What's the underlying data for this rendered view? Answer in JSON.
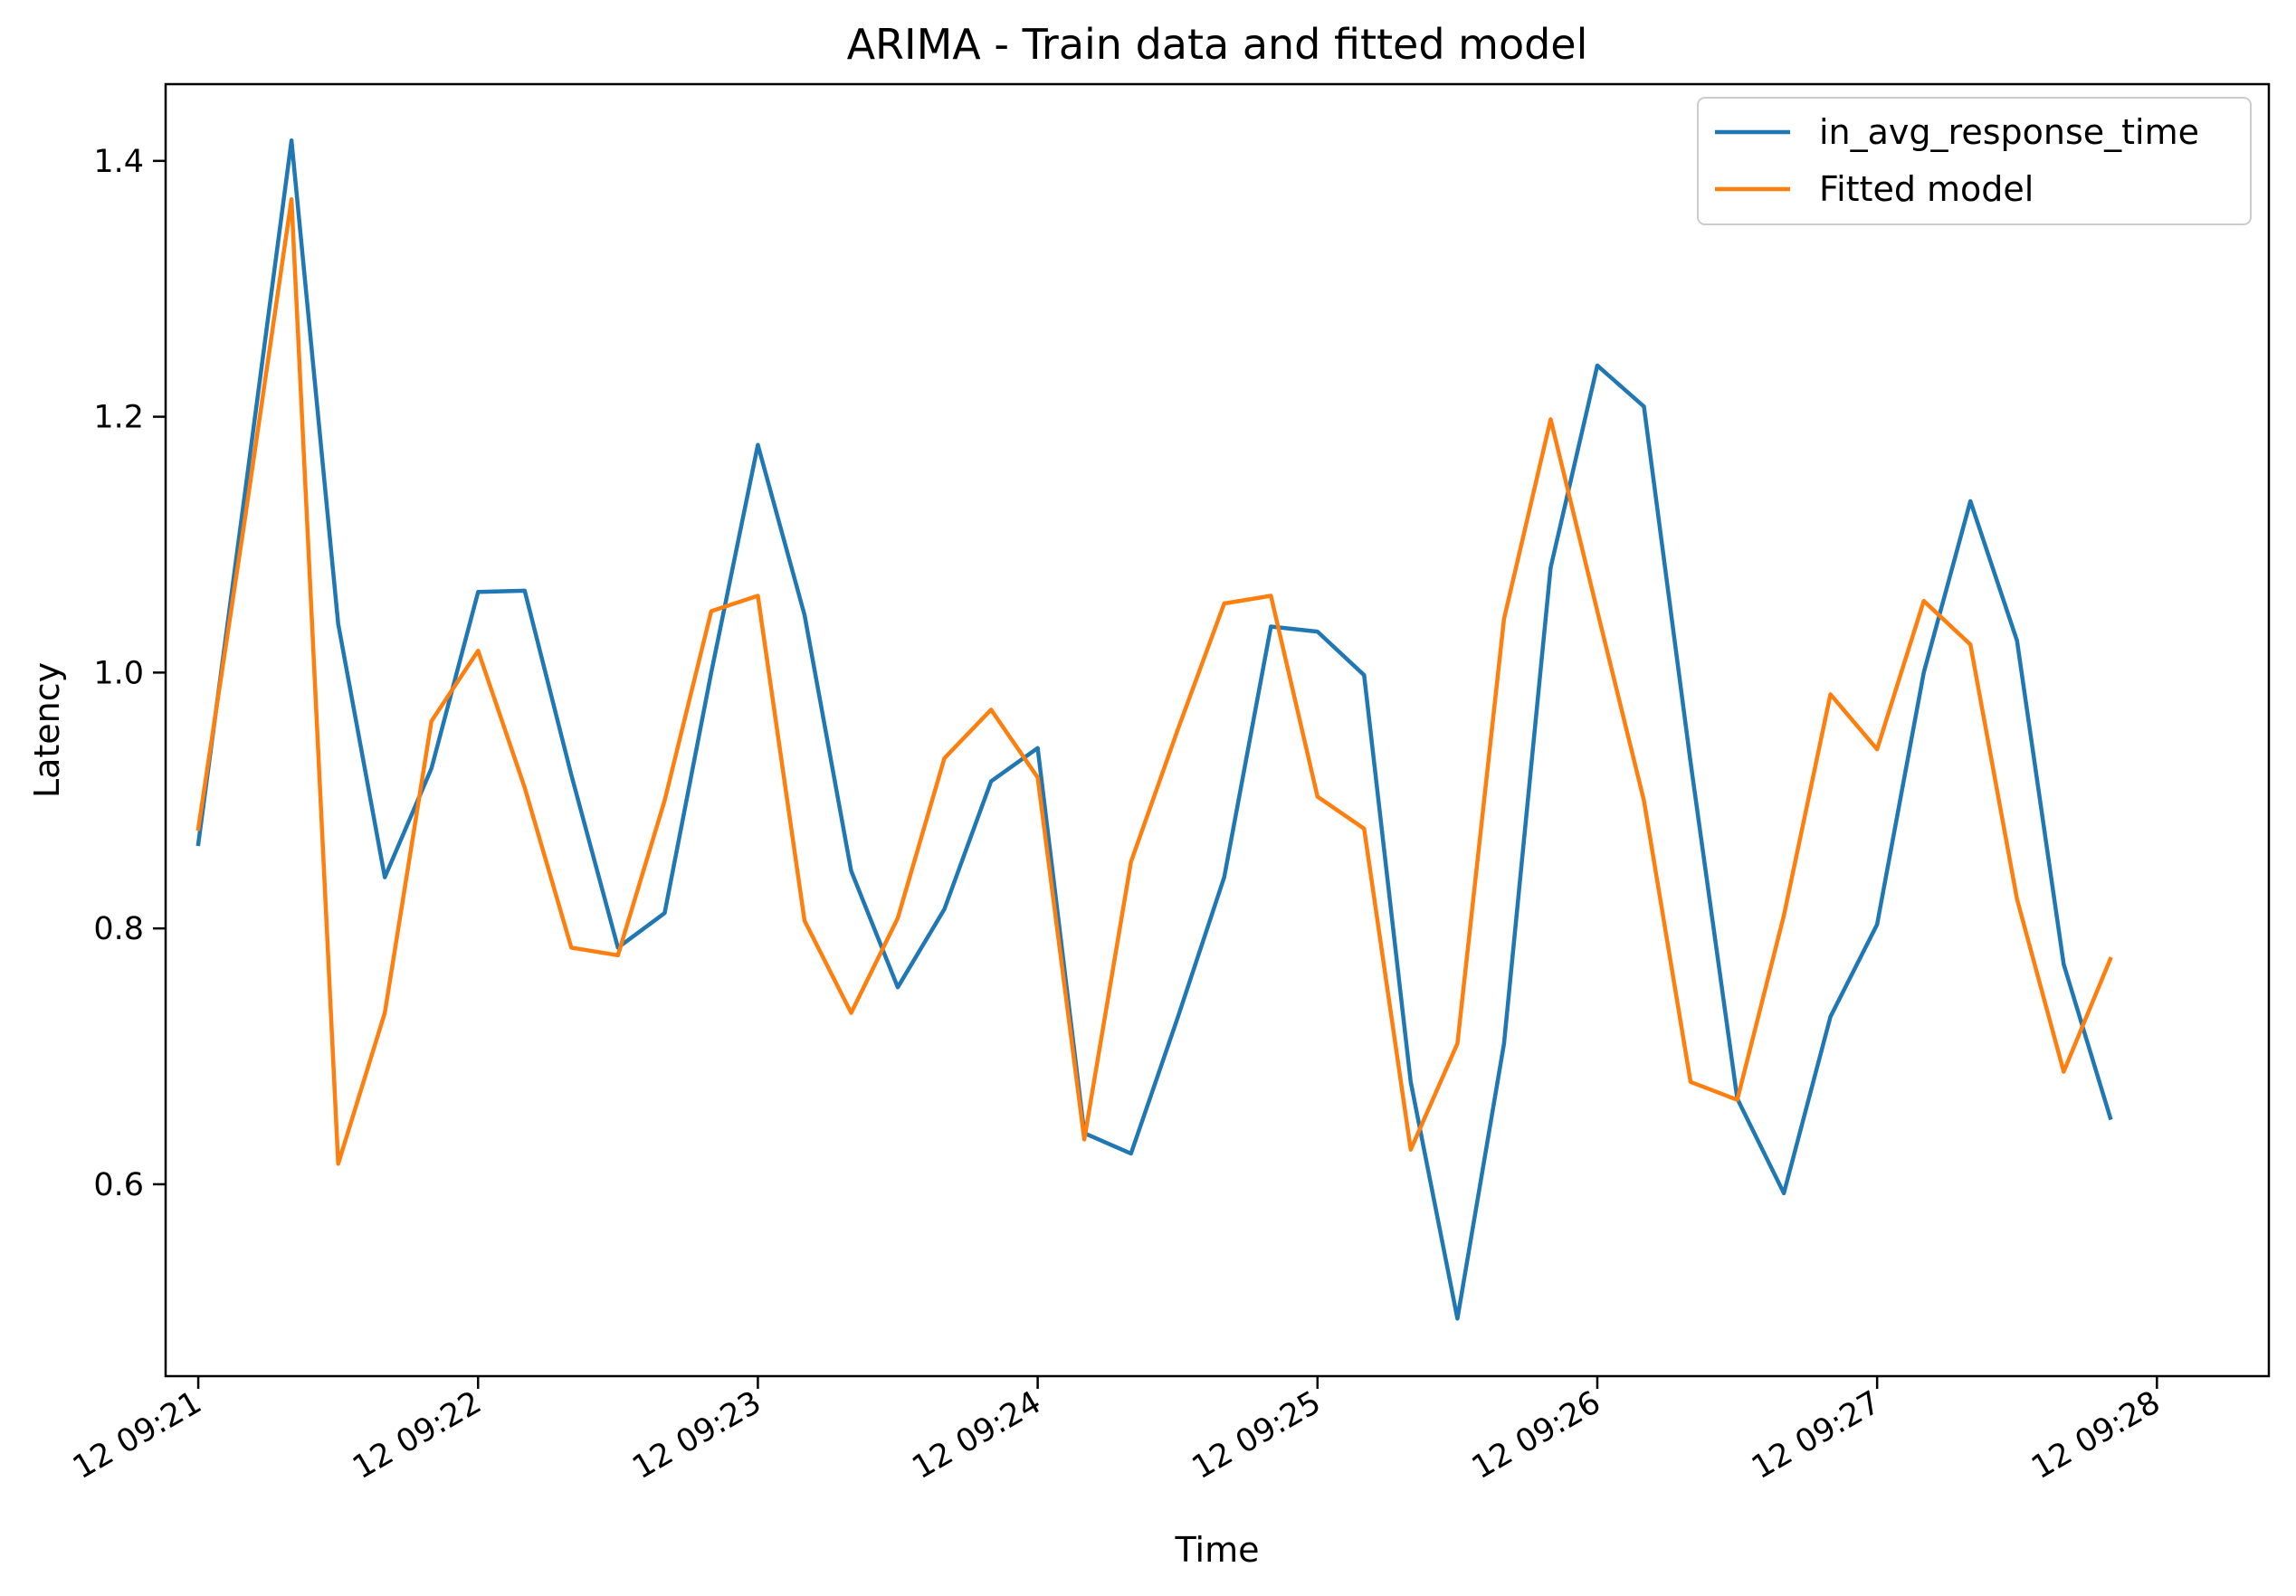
{
  "chart_data": {
    "type": "line",
    "title": "ARIMA - Train data and fitted model",
    "xlabel": "Time",
    "ylabel": "Latency",
    "ylim": [
      0.45,
      1.46
    ],
    "xlim": [
      "12 09:20:53",
      "12 09:28:24"
    ],
    "grid": false,
    "legend_position": "top-right",
    "x_ticks": [
      "12 09:21",
      "12 09:22",
      "12 09:23",
      "12 09:24",
      "12 09:25",
      "12 09:26",
      "12 09:27",
      "12 09:28"
    ],
    "y_ticks": [
      "0.6",
      "0.8",
      "1.0",
      "1.2",
      "1.4"
    ],
    "x": [
      "12 09:21:00",
      "12 09:21:10",
      "12 09:21:20",
      "12 09:21:30",
      "12 09:21:40",
      "12 09:21:50",
      "12 09:22:00",
      "12 09:22:10",
      "12 09:22:20",
      "12 09:22:30",
      "12 09:22:40",
      "12 09:22:50",
      "12 09:23:00",
      "12 09:23:10",
      "12 09:23:20",
      "12 09:23:30",
      "12 09:23:40",
      "12 09:23:50",
      "12 09:24:00",
      "12 09:24:10",
      "12 09:24:20",
      "12 09:24:30",
      "12 09:24:40",
      "12 09:24:50",
      "12 09:25:00",
      "12 09:25:10",
      "12 09:25:20",
      "12 09:25:30",
      "12 09:25:40",
      "12 09:25:50",
      "12 09:26:00",
      "12 09:26:10",
      "12 09:26:20",
      "12 09:26:30",
      "12 09:26:40",
      "12 09:26:50",
      "12 09:27:00",
      "12 09:27:10",
      "12 09:27:20",
      "12 09:27:30",
      "12 09:27:40",
      "12 09:27:50"
    ],
    "series": [
      {
        "name": "in_avg_response_time",
        "color": "#1f77b4",
        "values": [
          0.866,
          1.14,
          1.416,
          1.038,
          0.84,
          0.925,
          1.063,
          1.064,
          0.92,
          0.785,
          0.812,
          1.0,
          1.178,
          1.045,
          0.845,
          0.754,
          0.815,
          0.915,
          0.941,
          0.64,
          0.624,
          0.73,
          0.84,
          1.036,
          1.032,
          0.998,
          0.68,
          0.495,
          0.71,
          1.082,
          1.24,
          1.208,
          0.93,
          0.667,
          0.593,
          0.731,
          0.803,
          1.0,
          1.134,
          1.025,
          0.772,
          0.652
        ]
      },
      {
        "name": "Fitted model",
        "color": "#ff7f0e",
        "values": [
          0.878,
          1.12,
          1.37,
          0.616,
          0.734,
          0.962,
          1.017,
          0.91,
          0.785,
          0.779,
          0.9,
          1.048,
          1.06,
          0.806,
          0.734,
          0.808,
          0.933,
          0.971,
          0.918,
          0.635,
          0.852,
          0.955,
          1.054,
          1.06,
          0.903,
          0.878,
          0.627,
          0.71,
          1.042,
          1.198,
          1.048,
          0.9,
          0.68,
          0.666,
          0.81,
          0.983,
          0.94,
          1.056,
          1.022,
          0.823,
          0.688,
          0.776
        ]
      }
    ]
  }
}
